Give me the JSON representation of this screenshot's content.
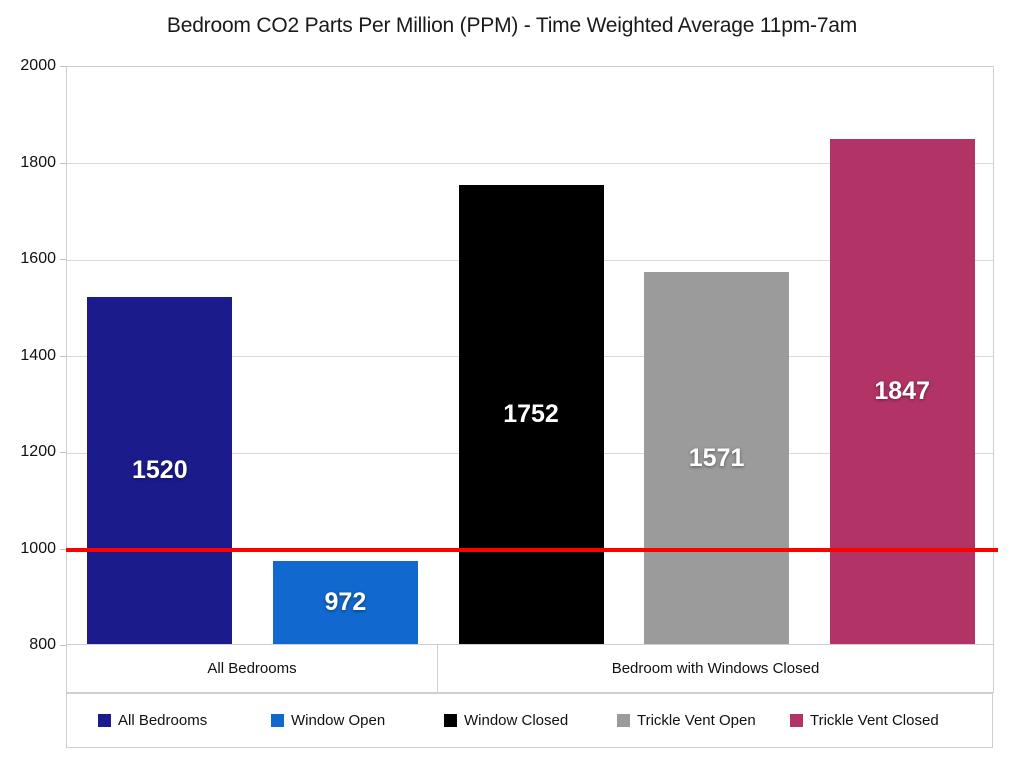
{
  "title": "Bedroom CO2 Parts Per Million (PPM) - Time Weighted Average 11pm-7am",
  "chart_data": {
    "type": "bar",
    "title": "Bedroom CO2 Parts Per Million (PPM) - Time Weighted Average 11pm-7am",
    "xlabel": "",
    "ylabel": "",
    "y_axis": {
      "min": 800,
      "max": 2000,
      "tick_interval": 200,
      "ticks": [
        2000,
        1800,
        1600,
        1400,
        1200,
        1000,
        800
      ]
    },
    "ylim": [
      800,
      2000
    ],
    "grid": true,
    "legend_position": "bottom",
    "reference_line": {
      "value": 1000,
      "color": "#ff0000"
    },
    "groups": [
      {
        "label": "All Bedrooms",
        "bars": [
          {
            "series": "All Bedrooms",
            "value": 1520,
            "color": "#1b1b8c"
          },
          {
            "series": "Window Open",
            "value": 972,
            "color": "#1168ce"
          }
        ]
      },
      {
        "label": "Bedroom with Windows Closed",
        "bars": [
          {
            "series": "Window Closed",
            "value": 1752,
            "color": "#000000"
          },
          {
            "series": "Trickle Vent Open",
            "value": 1571,
            "color": "#9b9b9b"
          },
          {
            "series": "Trickle Vent Closed",
            "value": 1847,
            "color": "#b23366"
          }
        ]
      }
    ],
    "legend": [
      {
        "label": "All Bedrooms",
        "color": "#1b1b8c"
      },
      {
        "label": "Window Open",
        "color": "#1168ce"
      },
      {
        "label": "Window Closed",
        "color": "#000000"
      },
      {
        "label": "Trickle Vent Open",
        "color": "#9b9b9b"
      },
      {
        "label": "Trickle Vent Closed",
        "color": "#b23366"
      }
    ]
  }
}
